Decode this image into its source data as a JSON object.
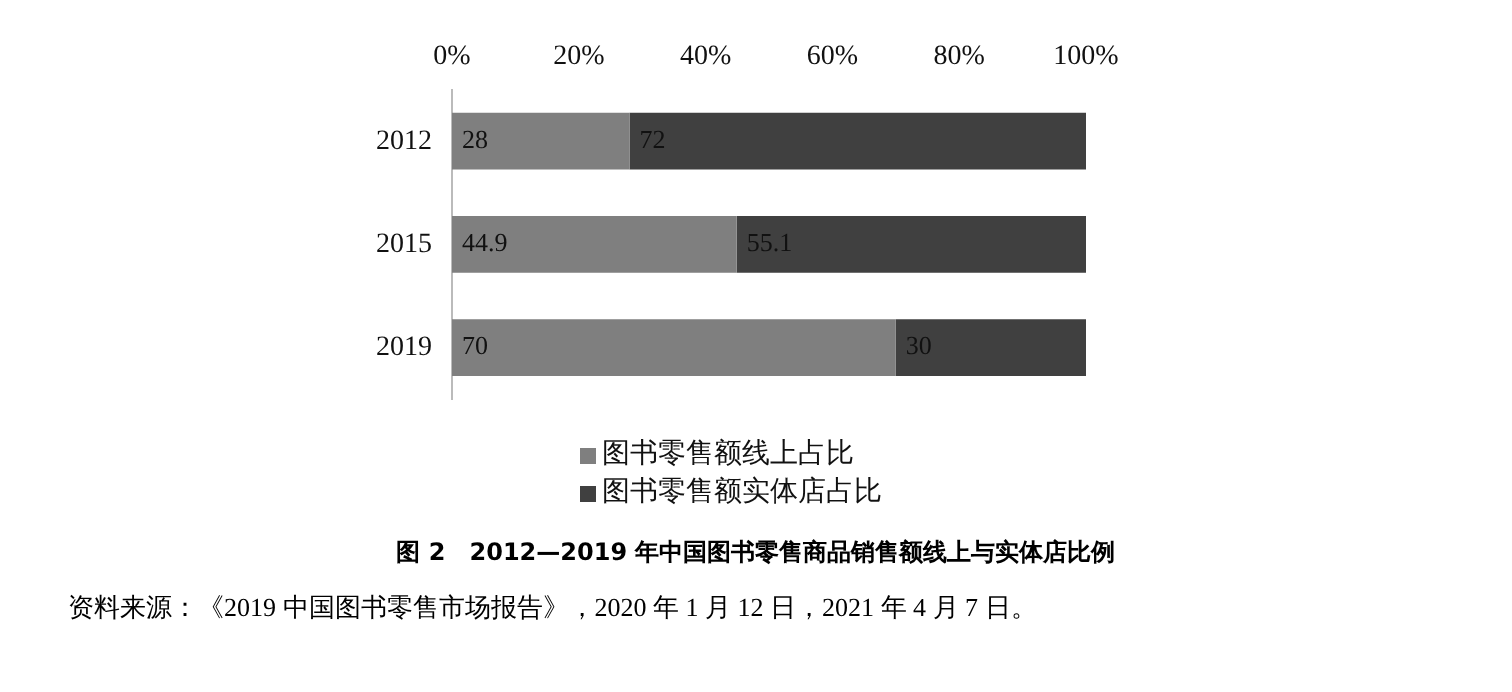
{
  "chart_data": {
    "type": "bar",
    "orientation": "horizontal",
    "stacked": true,
    "title": "图 2　2012—2019 年中国图书零售商品销售额线上与实体店比例",
    "categories": [
      "2012",
      "2015",
      "2019"
    ],
    "series": [
      {
        "name": "图书零售额线上占比",
        "color": "#7f7f7f",
        "values": [
          28,
          44.9,
          70
        ]
      },
      {
        "name": "图书零售额实体店占比",
        "color": "#404040",
        "values": [
          72,
          55.1,
          30
        ]
      }
    ],
    "xlim": [
      0,
      100
    ],
    "xticks": [
      {
        "value": 0,
        "label": "0%"
      },
      {
        "value": 20,
        "label": "20%"
      },
      {
        "value": 40,
        "label": "40%"
      },
      {
        "value": 60,
        "label": "60%"
      },
      {
        "value": 80,
        "label": "80%"
      },
      {
        "value": 100,
        "label": "100%"
      }
    ],
    "data_labels": true,
    "grid": false,
    "legend": "bottom",
    "annotations": [
      "资料来源：《2019 中国图书零售市场报告》，2020 年 1 月 12 日，2021 年 4 月 7 日。"
    ]
  }
}
